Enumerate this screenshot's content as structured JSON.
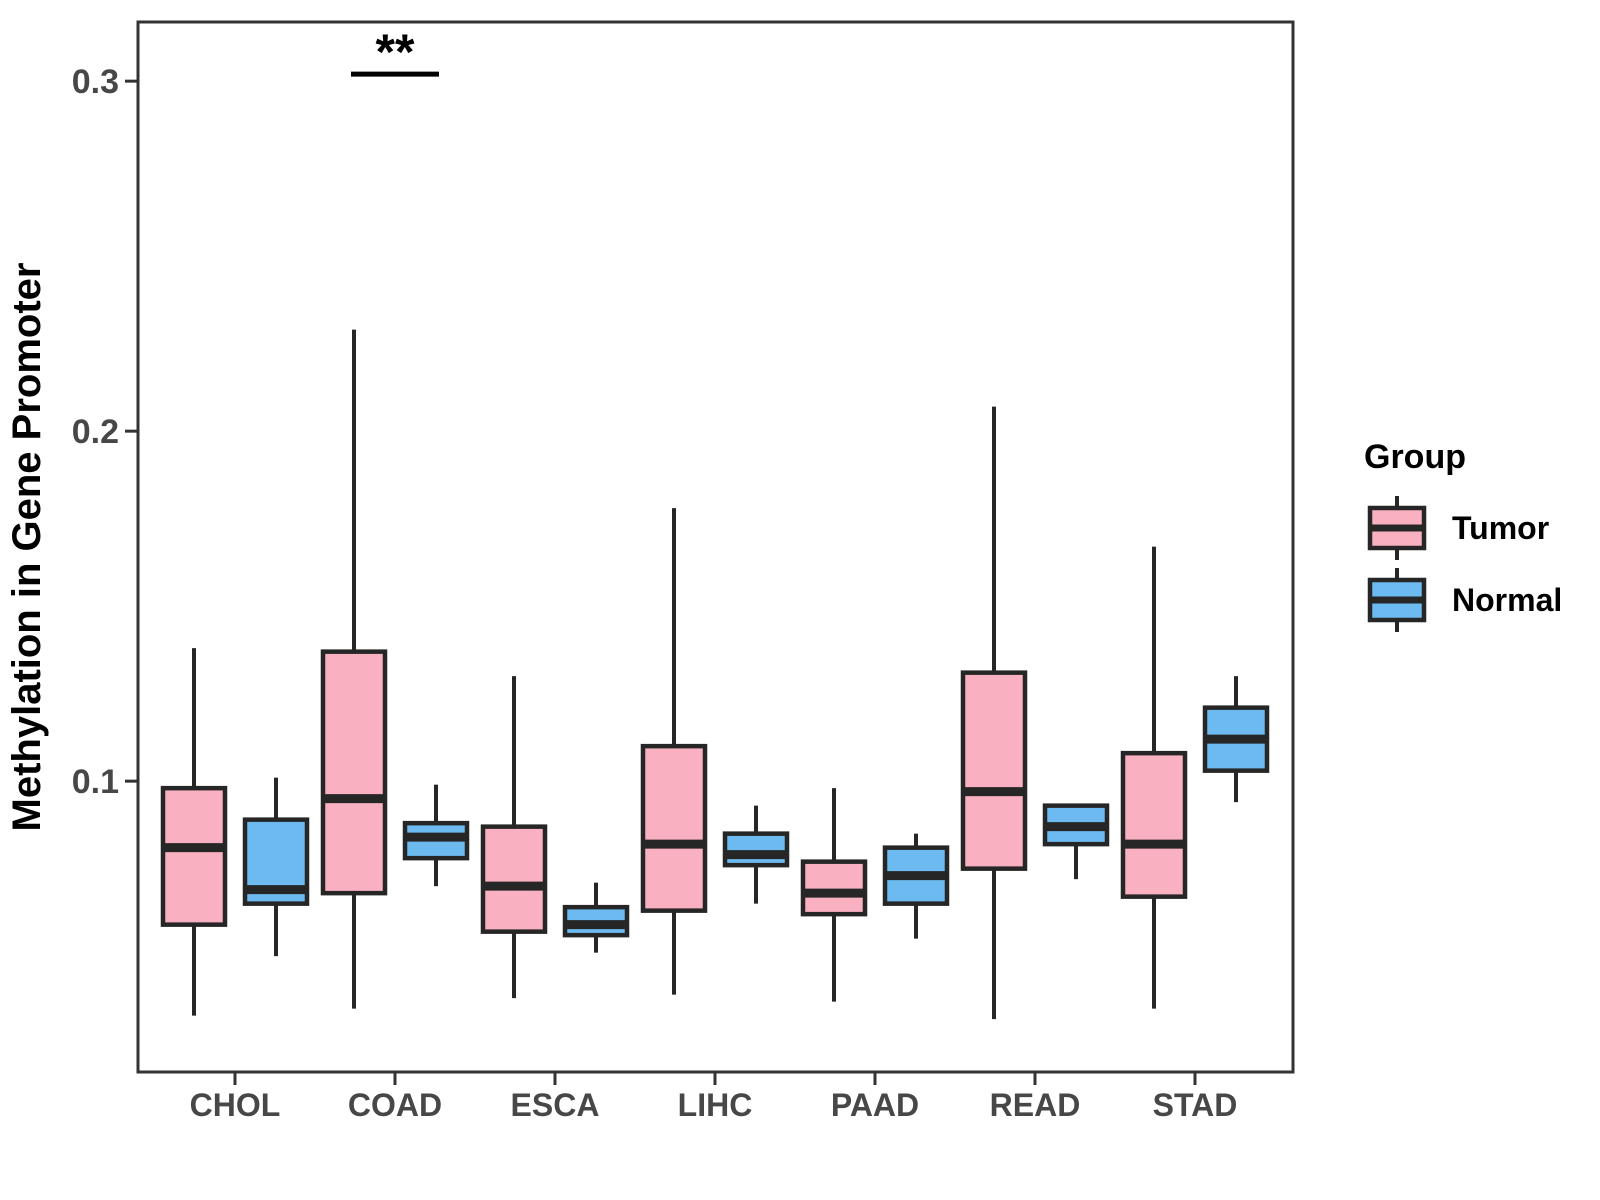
{
  "chart_data": {
    "type": "boxplot",
    "title": "",
    "xlabel": "",
    "ylabel": "Methylation in Gene Promoter",
    "categories": [
      "CHOL",
      "COAD",
      "ESCA",
      "LIHC",
      "PAAD",
      "READ",
      "STAD"
    ],
    "y_ticks": [
      0.1,
      0.2,
      0.3
    ],
    "ylim": [
      0.0169,
      0.3169
    ],
    "grid": "off",
    "panel_border": "#333333",
    "box_border": "#262626",
    "tick_label_color": "#474747",
    "legend": {
      "title": "Group",
      "position": "right",
      "entries": [
        {
          "label": "Tumor",
          "color": "#F9B1C1"
        },
        {
          "label": "Normal",
          "color": "#6CBAEF"
        }
      ]
    },
    "annotation": {
      "label": "**",
      "x_category": "COAD",
      "y": 0.302
    },
    "series": [
      {
        "name": "Tumor",
        "color": "#F9B1C1",
        "boxes": [
          {
            "category": "CHOL",
            "whisker_low": 0.033,
            "q1": 0.059,
            "median": 0.081,
            "q3": 0.098,
            "whisker_high": 0.138
          },
          {
            "category": "COAD",
            "whisker_low": 0.035,
            "q1": 0.068,
            "median": 0.095,
            "q3": 0.137,
            "whisker_high": 0.229
          },
          {
            "category": "ESCA",
            "whisker_low": 0.038,
            "q1": 0.057,
            "median": 0.07,
            "q3": 0.087,
            "whisker_high": 0.13
          },
          {
            "category": "LIHC",
            "whisker_low": 0.039,
            "q1": 0.063,
            "median": 0.082,
            "q3": 0.11,
            "whisker_high": 0.178
          },
          {
            "category": "PAAD",
            "whisker_low": 0.037,
            "q1": 0.062,
            "median": 0.068,
            "q3": 0.077,
            "whisker_high": 0.098
          },
          {
            "category": "READ",
            "whisker_low": 0.032,
            "q1": 0.075,
            "median": 0.097,
            "q3": 0.131,
            "whisker_high": 0.207
          },
          {
            "category": "STAD",
            "whisker_low": 0.035,
            "q1": 0.067,
            "median": 0.082,
            "q3": 0.108,
            "whisker_high": 0.167
          }
        ]
      },
      {
        "name": "Normal",
        "color": "#6CBAEF",
        "boxes": [
          {
            "category": "CHOL",
            "whisker_low": 0.05,
            "q1": 0.065,
            "median": 0.069,
            "q3": 0.089,
            "whisker_high": 0.101
          },
          {
            "category": "COAD",
            "whisker_low": 0.07,
            "q1": 0.078,
            "median": 0.084,
            "q3": 0.088,
            "whisker_high": 0.099
          },
          {
            "category": "ESCA",
            "whisker_low": 0.051,
            "q1": 0.056,
            "median": 0.059,
            "q3": 0.064,
            "whisker_high": 0.071
          },
          {
            "category": "LIHC",
            "whisker_low": 0.065,
            "q1": 0.076,
            "median": 0.079,
            "q3": 0.085,
            "whisker_high": 0.093
          },
          {
            "category": "PAAD",
            "whisker_low": 0.055,
            "q1": 0.065,
            "median": 0.073,
            "q3": 0.081,
            "whisker_high": 0.085
          },
          {
            "category": "READ",
            "whisker_low": 0.072,
            "q1": 0.082,
            "median": 0.087,
            "q3": 0.093,
            "whisker_high": 0.093
          },
          {
            "category": "STAD",
            "whisker_low": 0.094,
            "q1": 0.103,
            "median": 0.112,
            "q3": 0.121,
            "whisker_high": 0.13
          }
        ]
      }
    ]
  }
}
